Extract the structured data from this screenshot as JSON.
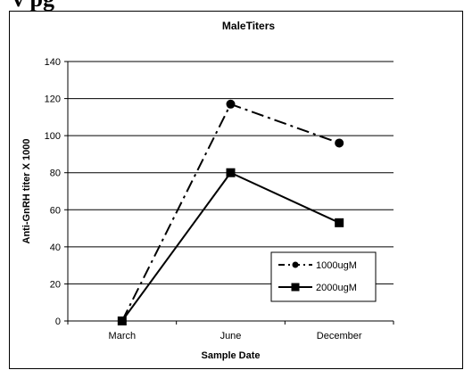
{
  "page": {
    "top_text": "v pg"
  },
  "chart_data": {
    "type": "line",
    "title": "MaleTiters",
    "xlabel": "Sample Date",
    "ylabel": "Anti-GnRH titer X 1000",
    "categories": [
      "March",
      "June",
      "December"
    ],
    "ylim": [
      0,
      140
    ],
    "yticks": [
      0,
      20,
      40,
      60,
      80,
      100,
      120,
      140
    ],
    "grid": true,
    "legend_position": "bottom-right",
    "series": [
      {
        "name": "1000ugM",
        "values": [
          0,
          117,
          96
        ],
        "marker": "circle",
        "line_style": "dash-dot",
        "color": "#000000"
      },
      {
        "name": "2000ugM",
        "values": [
          0,
          80,
          53
        ],
        "marker": "square",
        "line_style": "solid",
        "color": "#000000"
      }
    ]
  }
}
